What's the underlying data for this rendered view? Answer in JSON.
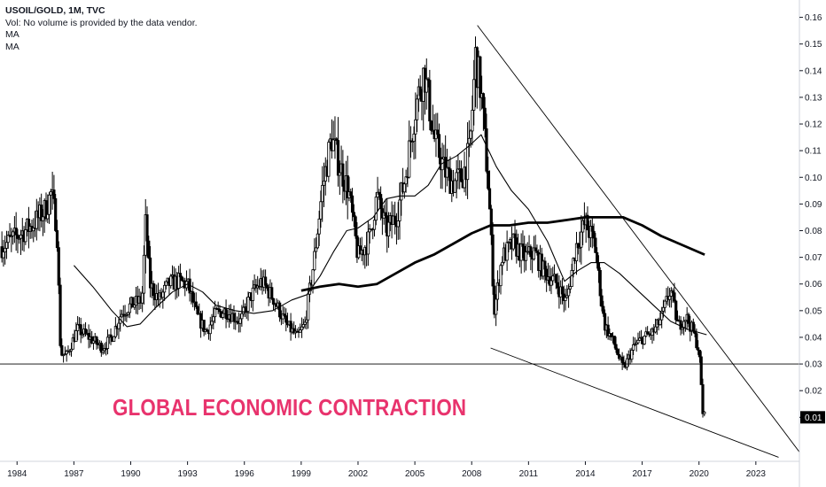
{
  "legend": {
    "title": "USOIL/GOLD, 1M, TVC",
    "volume_note": "Vol: No volume is provided by the data vendor.",
    "ma1": "MA",
    "ma2": "MA"
  },
  "annotation": {
    "text": "GLOBAL ECONOMIC CONTRACTION",
    "color": "#e8336d"
  },
  "colors": {
    "candle": "#000000",
    "price_tag_bg": "#000000",
    "line": "#000000",
    "axis_text": "#131722",
    "axis_border": "#d1d4dc"
  },
  "chart_data": {
    "type": "candlestick",
    "symbol": "USOIL/GOLD",
    "interval": "1M",
    "source": "TVC",
    "y_axis": {
      "side": "right",
      "ticks": [
        0.01,
        0.02,
        0.03,
        0.04,
        0.05,
        0.06,
        0.07,
        0.08,
        0.09,
        0.1,
        0.11,
        0.12,
        0.13,
        0.14,
        0.15,
        0.16
      ],
      "tick_labels": [
        "0.01",
        "0.02",
        "0.03",
        "0.04",
        "0.05",
        "0.06",
        "0.07",
        "0.08",
        "0.09",
        "0.10",
        "0.11",
        "0.12",
        "0.13",
        "0.14",
        "0.15",
        "0.16"
      ],
      "range": [
        -0.0065,
        0.1665
      ]
    },
    "x_axis": {
      "ticks": [
        1984,
        1987,
        1990,
        1993,
        1996,
        1999,
        2002,
        2005,
        2008,
        2011,
        2014,
        2017,
        2020,
        2023
      ],
      "tick_labels": [
        "1984",
        "1987",
        "1990",
        "1993",
        "1996",
        "1999",
        "2002",
        "2005",
        "2008",
        "2011",
        "2014",
        "2017",
        "2020",
        "2023"
      ],
      "range": [
        1983.1,
        2025.3
      ]
    },
    "last_price": 0.01,
    "last_price_label": "0.01",
    "price_path": [
      [
        1983.2,
        0.074
      ],
      [
        1984.0,
        0.078
      ],
      [
        1984.8,
        0.082
      ],
      [
        1985.5,
        0.088
      ],
      [
        1985.8,
        0.094
      ],
      [
        1986.1,
        0.082
      ],
      [
        1986.3,
        0.034
      ],
      [
        1986.6,
        0.033
      ],
      [
        1987.2,
        0.043
      ],
      [
        1987.8,
        0.04
      ],
      [
        1988.5,
        0.036
      ],
      [
        1989.0,
        0.04
      ],
      [
        1989.5,
        0.049
      ],
      [
        1990.0,
        0.052
      ],
      [
        1990.6,
        0.054
      ],
      [
        1990.8,
        0.085
      ],
      [
        1991.0,
        0.06
      ],
      [
        1991.5,
        0.054
      ],
      [
        1992.0,
        0.06
      ],
      [
        1992.5,
        0.061
      ],
      [
        1993.0,
        0.06
      ],
      [
        1993.5,
        0.048
      ],
      [
        1994.0,
        0.042
      ],
      [
        1994.5,
        0.049
      ],
      [
        1995.0,
        0.05
      ],
      [
        1995.8,
        0.046
      ],
      [
        1996.3,
        0.055
      ],
      [
        1996.9,
        0.061
      ],
      [
        1997.5,
        0.055
      ],
      [
        1998.2,
        0.045
      ],
      [
        1998.8,
        0.04
      ],
      [
        1999.2,
        0.045
      ],
      [
        1999.7,
        0.07
      ],
      [
        2000.1,
        0.095
      ],
      [
        2000.6,
        0.115
      ],
      [
        2001.0,
        0.105
      ],
      [
        2001.5,
        0.095
      ],
      [
        2002.0,
        0.07
      ],
      [
        2002.6,
        0.077
      ],
      [
        2003.0,
        0.093
      ],
      [
        2003.5,
        0.08
      ],
      [
        2004.0,
        0.085
      ],
      [
        2004.5,
        0.1
      ],
      [
        2005.0,
        0.125
      ],
      [
        2005.5,
        0.14
      ],
      [
        2006.0,
        0.115
      ],
      [
        2006.6,
        0.102
      ],
      [
        2007.0,
        0.098
      ],
      [
        2007.5,
        0.1
      ],
      [
        2007.9,
        0.11
      ],
      [
        2008.2,
        0.145
      ],
      [
        2008.5,
        0.132
      ],
      [
        2008.9,
        0.095
      ],
      [
        2009.2,
        0.05
      ],
      [
        2009.6,
        0.07
      ],
      [
        2010.2,
        0.075
      ],
      [
        2010.8,
        0.07
      ],
      [
        2011.3,
        0.072
      ],
      [
        2011.8,
        0.065
      ],
      [
        2012.5,
        0.06
      ],
      [
        2013.0,
        0.053
      ],
      [
        2013.5,
        0.074
      ],
      [
        2014.0,
        0.083
      ],
      [
        2014.5,
        0.075
      ],
      [
        2015.0,
        0.045
      ],
      [
        2015.5,
        0.038
      ],
      [
        2016.0,
        0.028
      ],
      [
        2016.6,
        0.037
      ],
      [
        2017.1,
        0.04
      ],
      [
        2017.6,
        0.042
      ],
      [
        2018.0,
        0.047
      ],
      [
        2018.5,
        0.058
      ],
      [
        2018.9,
        0.044
      ],
      [
        2019.3,
        0.048
      ],
      [
        2019.7,
        0.042
      ],
      [
        2020.0,
        0.035
      ],
      [
        2020.2,
        0.012
      ],
      [
        2020.3,
        0.01
      ]
    ],
    "series": [
      {
        "kind": "moving-average-short",
        "points": [
          [
            1987.0,
            0.067
          ],
          [
            1988.0,
            0.059
          ],
          [
            1989.0,
            0.05
          ],
          [
            1989.8,
            0.044
          ],
          [
            1990.5,
            0.045
          ],
          [
            1991.3,
            0.051
          ],
          [
            1992.2,
            0.057
          ],
          [
            1993.0,
            0.06
          ],
          [
            1993.8,
            0.057
          ],
          [
            1994.5,
            0.052
          ],
          [
            1995.5,
            0.05
          ],
          [
            1996.5,
            0.049
          ],
          [
            1997.5,
            0.05
          ],
          [
            1998.5,
            0.054
          ],
          [
            1999.3,
            0.056
          ],
          [
            2000.0,
            0.063
          ],
          [
            2000.7,
            0.072
          ],
          [
            2001.4,
            0.08
          ],
          [
            2002.0,
            0.081
          ],
          [
            2002.8,
            0.085
          ],
          [
            2003.5,
            0.092
          ],
          [
            2004.2,
            0.093
          ],
          [
            2005.0,
            0.093
          ],
          [
            2005.7,
            0.097
          ],
          [
            2006.4,
            0.105
          ],
          [
            2007.2,
            0.108
          ],
          [
            2007.9,
            0.112
          ],
          [
            2008.5,
            0.116
          ],
          [
            2009.3,
            0.104
          ],
          [
            2010.1,
            0.095
          ],
          [
            2011.0,
            0.088
          ],
          [
            2012.0,
            0.076
          ],
          [
            2012.9,
            0.061
          ],
          [
            2013.6,
            0.065
          ],
          [
            2014.3,
            0.068
          ],
          [
            2015.0,
            0.068
          ],
          [
            2015.8,
            0.064
          ],
          [
            2016.7,
            0.058
          ],
          [
            2017.6,
            0.052
          ],
          [
            2018.5,
            0.046
          ],
          [
            2019.4,
            0.043
          ],
          [
            2020.4,
            0.041
          ]
        ]
      },
      {
        "kind": "moving-average-long",
        "points": [
          [
            1999.0,
            0.0575
          ],
          [
            2000.0,
            0.059
          ],
          [
            2001.0,
            0.06
          ],
          [
            2002.0,
            0.059
          ],
          [
            2003.0,
            0.06
          ],
          [
            2004.0,
            0.064
          ],
          [
            2005.0,
            0.068
          ],
          [
            2006.0,
            0.071
          ],
          [
            2007.0,
            0.075
          ],
          [
            2008.0,
            0.079
          ],
          [
            2009.0,
            0.082
          ],
          [
            2010.0,
            0.082
          ],
          [
            2011.0,
            0.083
          ],
          [
            2012.0,
            0.083
          ],
          [
            2013.0,
            0.084
          ],
          [
            2014.0,
            0.085
          ],
          [
            2015.0,
            0.085
          ],
          [
            2016.0,
            0.085
          ],
          [
            2017.0,
            0.082
          ],
          [
            2018.0,
            0.078
          ],
          [
            2019.0,
            0.075
          ],
          [
            2020.3,
            0.071
          ]
        ]
      }
    ],
    "trend_lines": [
      {
        "kind": "resistance",
        "from": [
          2008.3,
          0.157
        ],
        "to": [
          2025.3,
          -0.003
        ]
      },
      {
        "kind": "support",
        "from": [
          2009.0,
          0.036
        ],
        "to": [
          2024.2,
          -0.005
        ]
      }
    ],
    "horizontal_lines": [
      {
        "kind": "support-level",
        "y": 0.03
      }
    ]
  }
}
